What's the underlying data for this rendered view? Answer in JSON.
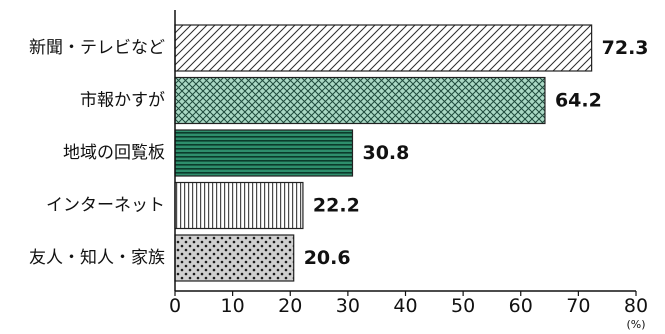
{
  "chart_data": {
    "type": "bar",
    "orientation": "horizontal",
    "categories": [
      "新聞・テレビなど",
      "市報かすが",
      "地域の回覧板",
      "インターネット",
      "友人・知人・家族"
    ],
    "values": [
      72.3,
      64.2,
      30.8,
      22.2,
      20.6
    ],
    "value_labels": [
      "72.3",
      "64.2",
      "30.8",
      "22.2",
      "20.6"
    ],
    "x_ticks": [
      "0",
      "10",
      "20",
      "30",
      "40",
      "50",
      "60",
      "70",
      "80"
    ],
    "x_unit": "(%)",
    "xlim": [
      0,
      80
    ],
    "grid": false,
    "legend": "none",
    "patterns": [
      "diagonal-hatch",
      "cross-hatch",
      "horizontal-lines",
      "vertical-lines",
      "dots"
    ],
    "colors": {
      "diagonal_fill": "#ffffff",
      "diagonal_line": "#2c2c2c",
      "cross_fill": "#a9d8c4",
      "cross_line": "#1e4a3c",
      "horizontal_fill": "#2e8e6c",
      "horizontal_line": "#0b3b2b",
      "vertical_fill": "#ffffff",
      "vertical_line": "#4a4a4a",
      "dots_fill": "#cfcfcf",
      "dots_dot": "#1a1a1a",
      "bar_border": "#222222",
      "axis": "#111111"
    }
  }
}
